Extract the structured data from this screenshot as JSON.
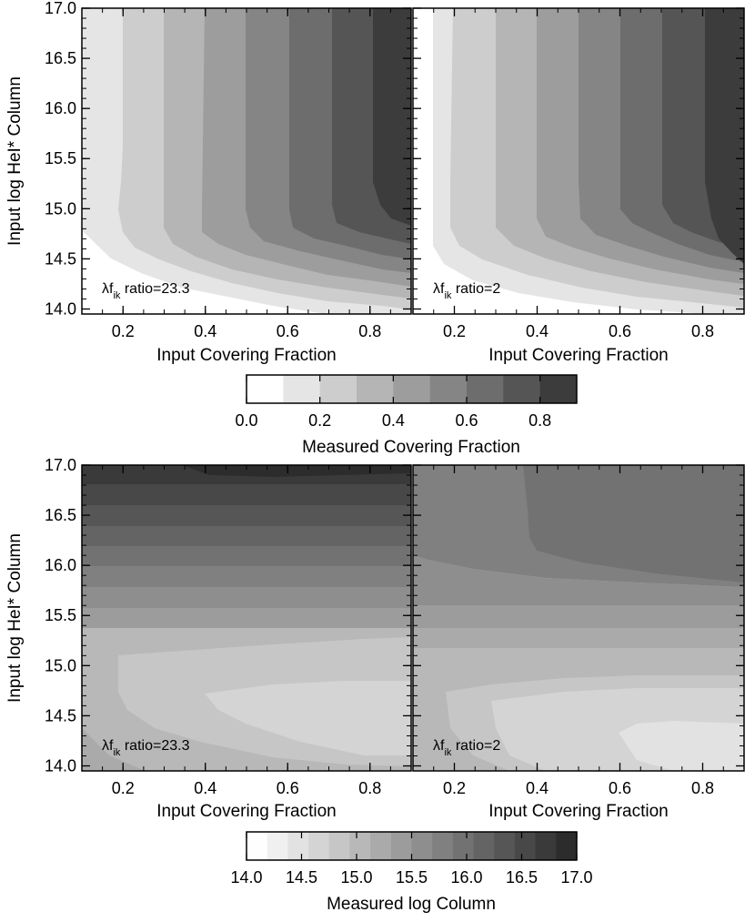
{
  "panels": {
    "top_left": {
      "annotation_prefix": "λf",
      "annotation_sub": "ik",
      "annotation_suffix": " ratio=23.3"
    },
    "top_right": {
      "annotation_prefix": "λf",
      "annotation_sub": "ik",
      "annotation_suffix": " ratio=2"
    },
    "bottom_left": {
      "annotation_prefix": "λf",
      "annotation_sub": "ik",
      "annotation_suffix": " ratio=23.3"
    },
    "bottom_right": {
      "annotation_prefix": "λf",
      "annotation_sub": "ik",
      "annotation_suffix": " ratio=2"
    }
  },
  "chart_data": [
    {
      "type": "heatmap",
      "panel": "top_left",
      "xlabel": "Input Covering Fraction",
      "ylabel": "Input log HeI* Column",
      "xlim": [
        0.1,
        0.9
      ],
      "ylim": [
        13.95,
        17.0
      ],
      "xticks": [
        "0.2",
        "0.4",
        "0.6",
        "0.8"
      ],
      "yticks": [
        "14.0",
        "14.5",
        "15.0",
        "15.5",
        "16.0",
        "16.5",
        "17.0"
      ],
      "annotation": "λfik ratio=23.3",
      "contour_quantity": "Measured Covering Fraction",
      "levels": [
        0.0,
        0.1,
        0.2,
        0.3,
        0.4,
        0.5,
        0.6,
        0.7,
        0.8,
        0.9
      ]
    },
    {
      "type": "heatmap",
      "panel": "top_right",
      "xlabel": "Input Covering Fraction",
      "xlim": [
        0.1,
        0.9
      ],
      "ylim": [
        13.95,
        17.0
      ],
      "xticks": [
        "0.2",
        "0.4",
        "0.6",
        "0.8"
      ],
      "annotation": "λfik ratio=2",
      "contour_quantity": "Measured Covering Fraction",
      "levels": [
        0.0,
        0.1,
        0.2,
        0.3,
        0.4,
        0.5,
        0.6,
        0.7,
        0.8,
        0.9
      ]
    },
    {
      "type": "heatmap",
      "panel": "bottom_left",
      "xlabel": "Input Covering Fraction",
      "ylabel": "Input log HeI* Column",
      "xlim": [
        0.1,
        0.9
      ],
      "ylim": [
        13.95,
        17.0
      ],
      "xticks": [
        "0.2",
        "0.4",
        "0.6",
        "0.8"
      ],
      "yticks": [
        "14.0",
        "14.5",
        "15.0",
        "15.5",
        "16.0",
        "16.5",
        "17.0"
      ],
      "annotation": "λfik ratio=23.3",
      "contour_quantity": "Measured log Column",
      "levels": [
        14.0,
        14.25,
        14.5,
        14.75,
        15.0,
        15.25,
        15.5,
        15.75,
        16.0,
        16.25,
        16.5,
        16.75,
        17.0
      ]
    },
    {
      "type": "heatmap",
      "panel": "bottom_right",
      "xlabel": "Input Covering Fraction",
      "xlim": [
        0.1,
        0.9
      ],
      "ylim": [
        13.95,
        17.0
      ],
      "xticks": [
        "0.2",
        "0.4",
        "0.6",
        "0.8"
      ],
      "annotation": "λfik ratio=2",
      "contour_quantity": "Measured log Column",
      "levels": [
        14.0,
        14.25,
        14.5,
        14.75,
        15.0,
        15.25,
        15.5,
        15.75,
        16.0,
        16.25,
        16.5,
        16.75,
        17.0
      ]
    }
  ],
  "colorbars": {
    "top": {
      "label": "Measured Covering Fraction",
      "ticks": [
        "0.0",
        "0.2",
        "0.4",
        "0.6",
        "0.8"
      ],
      "range": [
        0.0,
        0.9
      ],
      "colors": [
        "#ffffff",
        "#e5e5e5",
        "#cdcdcd",
        "#b5b5b5",
        "#9d9d9d",
        "#858585",
        "#6d6d6d",
        "#555555",
        "#3c3c3c"
      ]
    },
    "bottom": {
      "label": "Measured log Column",
      "ticks": [
        "14.0",
        "14.5",
        "15.0",
        "15.5",
        "16.0",
        "16.5",
        "17.0"
      ],
      "range": [
        14.0,
        17.0
      ],
      "colors": [
        "#fefefe",
        "#f0f0f0",
        "#e2e2e2",
        "#d4d4d4",
        "#c6c6c6",
        "#b8b8b8",
        "#aaaaaa",
        "#9c9c9c",
        "#8e8e8e",
        "#808080",
        "#727272",
        "#646464",
        "#565656",
        "#484848",
        "#3a3a3a",
        "#2c2c2c"
      ]
    }
  }
}
